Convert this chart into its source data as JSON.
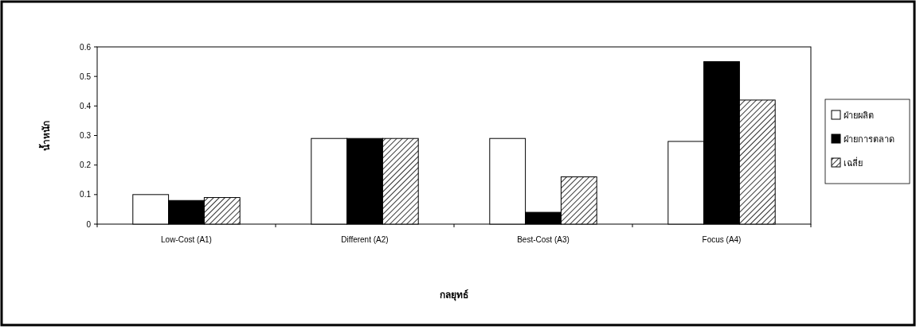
{
  "chart_data": {
    "type": "bar",
    "xlabel": "กลยุทธ์",
    "ylabel": "น้ำหนัก",
    "categories": [
      "Low-Cost (A1)",
      "Different (A2)",
      "Best-Cost (A3)",
      "Focus (A4)"
    ],
    "series": [
      {
        "name": "ฝ่ายผลิต",
        "color": "#ffffff",
        "values": [
          0.1,
          0.29,
          0.29,
          0.28
        ]
      },
      {
        "name": "ฝ่ายการตลาด",
        "color": "#000000",
        "values": [
          0.08,
          0.29,
          0.04,
          0.55
        ]
      },
      {
        "name": "เฉลี่ย",
        "color": "#000000",
        "values": [
          0.09,
          0.29,
          0.16,
          0.42
        ]
      }
    ],
    "ylim": [
      0,
      0.6
    ],
    "yticks": [
      0,
      0.1,
      0.2,
      0.3,
      0.4,
      0.5,
      0.6
    ],
    "grid": false,
    "legend": "right"
  }
}
